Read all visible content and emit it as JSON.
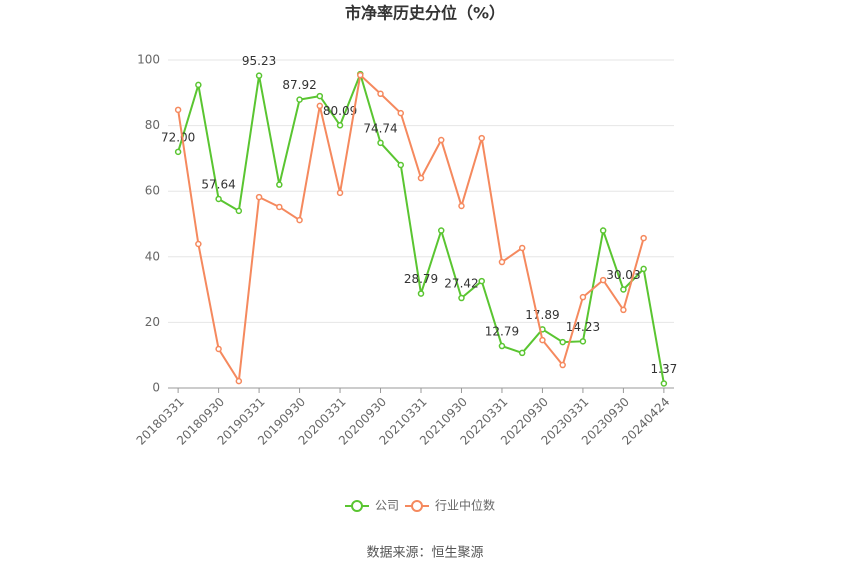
{
  "chart_data": {
    "type": "line",
    "title": "市净率历史分位（%）",
    "categories": [
      "20180331",
      null,
      "20180930",
      null,
      "20190331",
      null,
      "20190930",
      null,
      "20200331",
      null,
      "20200930",
      null,
      "20210331",
      null,
      "20210930",
      null,
      "20220331",
      null,
      "20220930",
      null,
      "20230331",
      null,
      "20230930",
      null,
      "20240424"
    ],
    "series": [
      {
        "name": "公司",
        "color": "#5ac531",
        "values": [
          72.0,
          92.4,
          57.64,
          54,
          95.23,
          62,
          87.92,
          89,
          80.09,
          95.7,
          74.74,
          68,
          28.79,
          48,
          27.42,
          32.6,
          12.79,
          10.7,
          17.89,
          14,
          14.23,
          48,
          30.03,
          36.3,
          1.37
        ],
        "value_labels": [
          "72.00",
          null,
          "57.64",
          null,
          "95.23",
          null,
          "87.92",
          null,
          "80.09",
          null,
          "74.74",
          null,
          "28.79",
          null,
          "27.42",
          null,
          "12.79",
          null,
          "17.89",
          null,
          "14.23",
          null,
          "30.03",
          null,
          "1.37"
        ]
      },
      {
        "name": "行业中位数",
        "color": "#f5895e",
        "values": [
          84.8,
          43.9,
          11.9,
          2.1,
          58.2,
          55.2,
          51.2,
          86,
          59.5,
          95.4,
          89.7,
          83.8,
          64,
          75.6,
          55.5,
          76.2,
          38.4,
          42.7,
          14.6,
          7,
          27.7,
          32.9,
          23.8,
          45.7,
          null
        ]
      }
    ],
    "ylim": [
      0,
      100
    ],
    "yticks": [
      0,
      20,
      40,
      60,
      80,
      100
    ],
    "grid": true,
    "source": "数据来源：恒生聚源"
  }
}
